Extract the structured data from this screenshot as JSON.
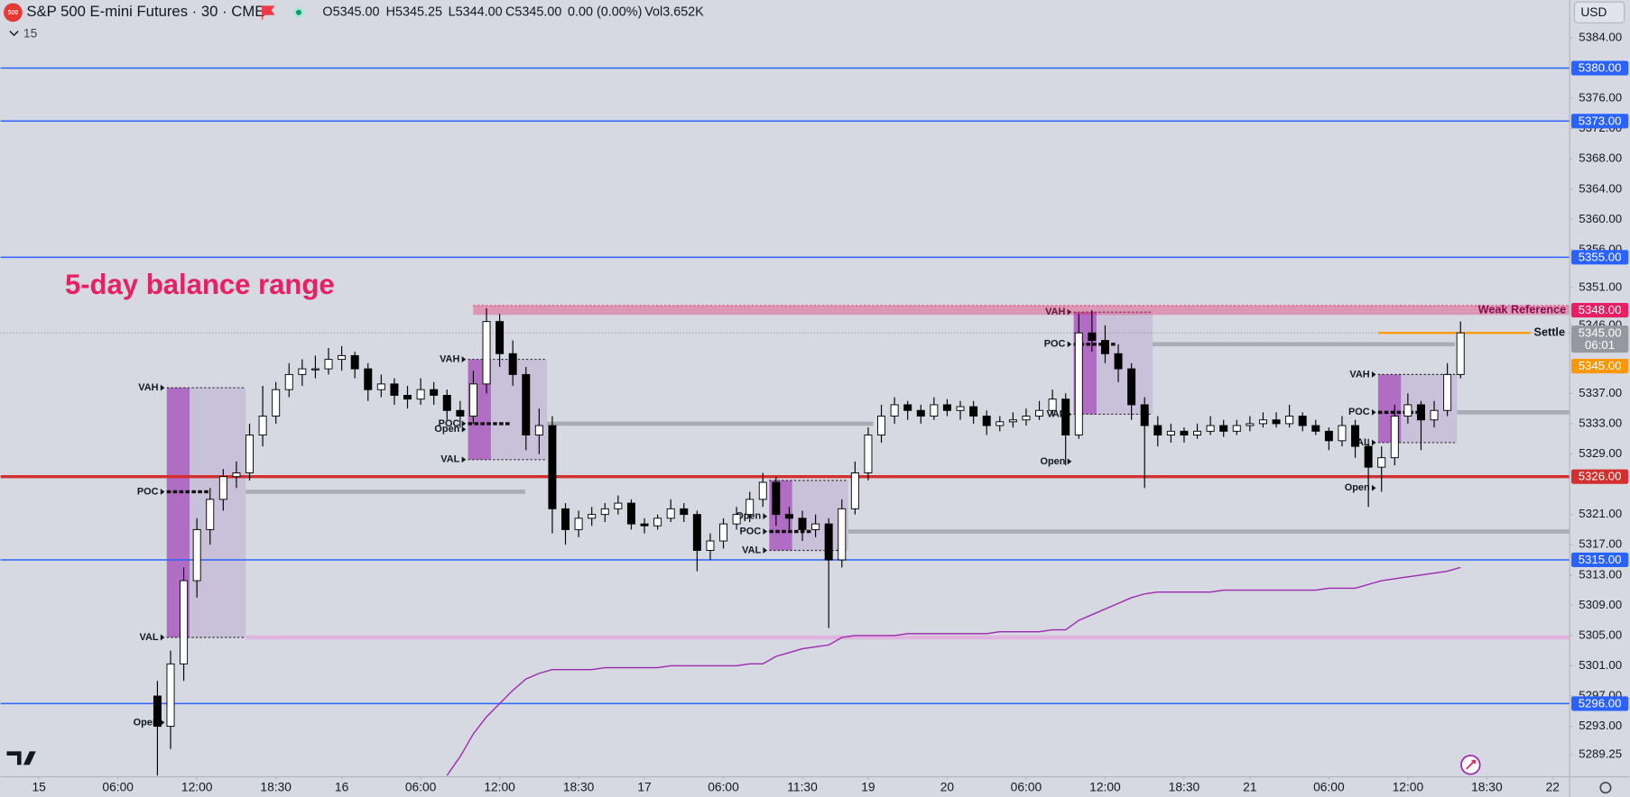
{
  "header": {
    "logo": "500",
    "title": "S&P 500 E-mini Futures · 30 · CME",
    "ohlc": [
      "O5345.00",
      "H5345.25",
      "L5344.00",
      "C5345.00",
      "0.00 (0.00%)",
      "Vol3.652K"
    ],
    "indicator": "15",
    "currency": "USD"
  },
  "chart_data": {
    "type": "candlestick",
    "annotation": "5-day balance range",
    "annotation_color": "#e91e63",
    "ylim": [
      5286.4,
      5389
    ],
    "yticks": [
      {
        "value": 5384,
        "label": "5384.00"
      },
      {
        "value": 5376,
        "label": "5376.00"
      },
      {
        "value": 5372,
        "label": "5372.00"
      },
      {
        "value": 5368,
        "label": "5368.00"
      },
      {
        "value": 5364,
        "label": "5364.00"
      },
      {
        "value": 5360,
        "label": "5360.00"
      },
      {
        "value": 5356,
        "label": "5356.00"
      },
      {
        "value": 5351,
        "label": "5351.00"
      },
      {
        "value": 5346,
        "label": "5346.00"
      },
      {
        "value": 5337,
        "label": "5337.00"
      },
      {
        "value": 5333,
        "label": "5333.00"
      },
      {
        "value": 5329,
        "label": "5329.00"
      },
      {
        "value": 5321,
        "label": "5321.00"
      },
      {
        "value": 5317,
        "label": "5317.00"
      },
      {
        "value": 5313,
        "label": "5313.00"
      },
      {
        "value": 5309,
        "label": "5309.00"
      },
      {
        "value": 5305,
        "label": "5305.00"
      },
      {
        "value": 5301,
        "label": "5301.00"
      },
      {
        "value": 5297,
        "label": "5297.00"
      },
      {
        "value": 5293,
        "label": "5293.00"
      },
      {
        "value": 5289.25,
        "label": "5289.25"
      }
    ],
    "grid": false,
    "categories": [
      "15",
      null,
      null,
      null,
      null,
      null,
      "06:00",
      null,
      null,
      null,
      null,
      null,
      "12:00",
      null,
      null,
      null,
      null,
      null,
      "18:30",
      null,
      null,
      null,
      null,
      "16",
      null,
      null,
      null,
      null,
      null,
      "06:00",
      null,
      null,
      null,
      null,
      null,
      "12:00",
      null,
      null,
      null,
      null,
      null,
      "18:30",
      null,
      null,
      null,
      null,
      "17",
      null,
      null,
      null,
      null,
      null,
      "06:00",
      null,
      null,
      null,
      null,
      null,
      "11:30",
      null,
      null,
      null,
      null,
      "19",
      null,
      null,
      null,
      null,
      null,
      "20",
      null,
      null,
      null,
      null,
      null,
      "06:00",
      null,
      null,
      null,
      null,
      null,
      "12:00",
      null,
      null,
      null,
      null,
      null,
      "18:30",
      null,
      null,
      null,
      null,
      "21",
      null,
      null,
      null,
      null,
      null,
      "06:00",
      null,
      null,
      null,
      null,
      null,
      "12:00",
      null,
      null,
      null,
      null,
      null,
      "18:30",
      null,
      null,
      null,
      null,
      "22"
    ],
    "up_color": "#ffffff",
    "down_color": "#000000",
    "outline_color": "#000000",
    "open": [
      null,
      null,
      null,
      null,
      null,
      null,
      null,
      null,
      null,
      5297,
      5293,
      5301.25,
      5312.25,
      5319,
      5323,
      5326,
      5326.5,
      5331.5,
      5334,
      5337.5,
      5339.5,
      5340.25,
      5340.25,
      5341.5,
      5342,
      5340.25,
      5337.5,
      5338.25,
      5336.75,
      5336.25,
      5337.5,
      5336.75,
      5334.75,
      5334,
      5338.25,
      5346.5,
      5342.25,
      5339.5,
      5331.5,
      5332.75,
      5321.75,
      5319,
      5320.5,
      5321,
      5321.75,
      5322.5,
      5319.75,
      5319.5,
      5320.5,
      5321.75,
      5321,
      5316.25,
      5317.5,
      5319.75,
      5321,
      5323,
      5325.25,
      5321,
      5320.5,
      5319,
      5319.75,
      5315,
      5321.75,
      5326.5,
      5331.5,
      5334,
      5335.5,
      5334.75,
      5334,
      5335.5,
      5334.75,
      5335.25,
      5334,
      5332.75,
      5333.25,
      5333.5,
      5334,
      5334.75,
      5336.25,
      5331.5,
      5345,
      5344,
      5342.25,
      5340.25,
      5335.5,
      5332.75,
      5331.5,
      5332,
      5331.5,
      5332,
      5332.75,
      5332,
      5332.75,
      5333,
      5333.5,
      5333,
      5334,
      5332.75,
      5332,
      5330.75,
      5332.75,
      5330,
      5327.25,
      5328.5,
      5334,
      5335.5,
      5333.5,
      5334.75,
      5339.5,
      null,
      null,
      null,
      null,
      null,
      null,
      null
    ],
    "high": [
      null,
      null,
      null,
      null,
      null,
      null,
      null,
      null,
      null,
      5299,
      5303,
      5314,
      5320.5,
      5324.5,
      5327,
      5328,
      5333,
      5338,
      5338.5,
      5341,
      5341.5,
      5342,
      5343,
      5343.25,
      5342.5,
      5341,
      5339.5,
      5339,
      5338,
      5339,
      5338.5,
      5337.5,
      5336,
      5340,
      5348.25,
      5347.5,
      5344,
      5340.5,
      5335,
      5334,
      5322.5,
      5321.5,
      5322,
      5322.5,
      5323.5,
      5323,
      5320.5,
      5321,
      5323,
      5322.5,
      5321.5,
      5318.5,
      5320.5,
      5322,
      5324,
      5326.5,
      5326,
      5322,
      5321.5,
      5321,
      5320.5,
      5323,
      5328,
      5332.5,
      5335.5,
      5336.5,
      5336,
      5335.5,
      5336.5,
      5336.25,
      5336,
      5336,
      5334.75,
      5334,
      5334.5,
      5335,
      5336,
      5337.5,
      5337,
      5347.5,
      5348,
      5346,
      5343.5,
      5341,
      5336.5,
      5334,
      5333,
      5332.5,
      5333,
      5334,
      5333.5,
      5333.5,
      5334,
      5334.5,
      5334.5,
      5335.5,
      5334.5,
      5333.5,
      5332.5,
      5334,
      5333.5,
      5331,
      5330,
      5335.5,
      5337,
      5336,
      5336,
      5341,
      5346.5,
      null,
      null,
      null,
      null,
      null,
      null,
      null
    ],
    "low": [
      null,
      null,
      null,
      null,
      null,
      null,
      null,
      null,
      null,
      5286.5,
      5290,
      5299,
      5310,
      5317,
      5321.5,
      5324.5,
      5325.5,
      5330,
      5333,
      5336.5,
      5338,
      5339,
      5339.5,
      5340,
      5339,
      5336,
      5336.5,
      5335.5,
      5335,
      5335.5,
      5335.5,
      5333.5,
      5332.5,
      5333,
      5337,
      5340.5,
      5338,
      5329.5,
      5329,
      5318.5,
      5317,
      5318,
      5319.5,
      5320,
      5321,
      5319,
      5318.5,
      5319,
      5320,
      5320,
      5313.5,
      5315,
      5316.5,
      5319,
      5320,
      5322,
      5319.5,
      5319,
      5317.5,
      5318,
      5306,
      5314,
      5321,
      5325.5,
      5330.5,
      5333,
      5333.5,
      5333,
      5333.5,
      5334,
      5333.5,
      5333,
      5331.5,
      5332,
      5332.5,
      5332.75,
      5333.5,
      5334,
      5327.5,
      5331,
      5342.5,
      5341,
      5338.5,
      5333.5,
      5324.5,
      5330,
      5330.5,
      5330.5,
      5331,
      5331.5,
      5331.25,
      5331.5,
      5332,
      5332.5,
      5332.5,
      5332.5,
      5332,
      5331.5,
      5329.5,
      5330,
      5328.5,
      5322,
      5324,
      5327.5,
      5333,
      5329.5,
      5332.5,
      5334,
      5339,
      null,
      null,
      null,
      null,
      null,
      null,
      null
    ],
    "close": [
      null,
      null,
      null,
      null,
      null,
      null,
      null,
      null,
      null,
      5293,
      5301.25,
      5312.25,
      5319,
      5323,
      5326,
      5326.5,
      5331.5,
      5334,
      5337.5,
      5339.5,
      5340.25,
      5340.25,
      5341.5,
      5342,
      5340.25,
      5337.5,
      5338.25,
      5336.75,
      5336.25,
      5337.5,
      5336.75,
      5334.75,
      5334,
      5338.25,
      5346.5,
      5342.25,
      5339.5,
      5331.5,
      5332.75,
      5321.75,
      5319,
      5320.5,
      5321,
      5321.75,
      5322.5,
      5319.75,
      5319.5,
      5320.5,
      5321.75,
      5321,
      5316.25,
      5317.5,
      5319.75,
      5321,
      5323,
      5325.25,
      5321,
      5320.5,
      5319,
      5319.75,
      5315,
      5321.75,
      5326.5,
      5331.5,
      5334,
      5335.5,
      5334.75,
      5334,
      5335.5,
      5334.75,
      5335.25,
      5334,
      5332.75,
      5333.25,
      5333.5,
      5334,
      5334.75,
      5336.25,
      5331.5,
      5345,
      5344,
      5342.25,
      5340.25,
      5335.5,
      5332.75,
      5331.5,
      5332,
      5331.5,
      5332,
      5332.75,
      5332,
      5332.75,
      5333,
      5333.5,
      5333,
      5334,
      5332.75,
      5332,
      5330.75,
      5332.75,
      5330,
      5327.25,
      5328.5,
      5334,
      5335.5,
      5333.5,
      5334.75,
      5339.5,
      5345,
      null,
      null,
      null,
      null,
      null,
      null,
      null
    ],
    "overlay": {
      "color": "#9c27b0",
      "values": [
        null,
        null,
        null,
        null,
        null,
        null,
        null,
        null,
        null,
        null,
        null,
        null,
        null,
        null,
        null,
        null,
        null,
        null,
        null,
        null,
        null,
        null,
        null,
        null,
        null,
        null,
        null,
        null,
        null,
        null,
        null,
        5286.5,
        5289,
        5292,
        5294.25,
        5296,
        5297.75,
        5299.25,
        5300,
        5300.5,
        5300.5,
        5300.5,
        5300.5,
        5300.75,
        5300.75,
        5300.75,
        5300.75,
        5300.75,
        5301,
        5301,
        5301,
        5301,
        5301,
        5301,
        5301.25,
        5301.25,
        5302.25,
        5302.75,
        5303.25,
        5303.5,
        5303.75,
        5304.75,
        5305,
        5305,
        5305,
        5305,
        5305.25,
        5305.25,
        5305.25,
        5305.25,
        5305.25,
        5305.25,
        5305.25,
        5305.5,
        5305.5,
        5305.5,
        5305.5,
        5305.75,
        5305.75,
        5307,
        5307.75,
        5308.5,
        5309.25,
        5310,
        5310.5,
        5310.75,
        5310.75,
        5310.75,
        5310.75,
        5310.75,
        5311,
        5311,
        5311,
        5311,
        5311,
        5311,
        5311,
        5311,
        5311.25,
        5311.25,
        5311.25,
        5311.75,
        5312.25,
        5312.5,
        5312.75,
        5313,
        5313.25,
        5313.5,
        5314,
        null,
        null,
        null,
        null,
        null,
        null,
        null
      ]
    },
    "profiles": [
      {
        "vah": 5337.75,
        "poc": 5324,
        "val": 5304.75,
        "markers": [
          {
            "label": "VAH",
            "value": 5337.75
          },
          {
            "label": "POC",
            "value": 5324
          },
          {
            "label": "VAL",
            "value": 5304.75
          },
          {
            "label": "Open",
            "value": 5293.5
          }
        ]
      },
      {
        "vah": 5341.5,
        "poc": 5333,
        "val": 5328.25,
        "markers": [
          {
            "label": "VAH",
            "value": 5341.5
          },
          {
            "label": "POC",
            "value": 5333
          },
          {
            "label": "Open",
            "value": 5332.25
          },
          {
            "label": "VAL",
            "value": 5328.25
          }
        ]
      },
      {
        "vah": 5325.5,
        "poc": 5318.75,
        "val": 5316.25,
        "markers": [
          {
            "label": "Open",
            "value": 5320.75
          },
          {
            "label": "POC",
            "value": 5318.75
          },
          {
            "label": "VAL",
            "value": 5316.25
          }
        ]
      },
      {
        "vah": 5347.75,
        "poc": 5343.5,
        "val": 5334.25,
        "markers": [
          {
            "label": "VAH",
            "value": 5347.75
          },
          {
            "label": "POC",
            "value": 5343.5
          },
          {
            "label": "VAL",
            "value": 5334.25
          },
          {
            "label": "Open",
            "value": 5328
          }
        ]
      },
      {
        "vah": 5339.5,
        "poc": 5334.5,
        "val": 5330.5,
        "markers": [
          {
            "label": "VAH",
            "value": 5339.5
          },
          {
            "label": "POC",
            "value": 5334.5
          },
          {
            "label": "VAL",
            "value": 5330.5
          },
          {
            "label": "Open",
            "value": 5324.5
          }
        ]
      }
    ],
    "current": {
      "value": 5345,
      "label": "5345.00",
      "countdown": "06:01",
      "color": "#9598a1"
    },
    "levels": [
      {
        "value": 5380,
        "label": "5380.00",
        "color": "#2962ff",
        "style": "line"
      },
      {
        "value": 5373,
        "label": "5373.00",
        "color": "#2962ff",
        "style": "line"
      },
      {
        "value": 5355,
        "label": "5355.00",
        "color": "#2962ff",
        "style": "line"
      },
      {
        "value": 5348,
        "label": "5348.00",
        "color": "#e91e63",
        "style": "band",
        "text": "Weak Reference"
      },
      {
        "value": 5345,
        "label": "5345.00",
        "color": "#ff9800",
        "style": "short",
        "text": "Settle"
      },
      {
        "value": 5326,
        "label": "5326.00",
        "color": "#d32f2f",
        "style": "thick"
      },
      {
        "value": 5315,
        "label": "5315.00",
        "color": "#2962ff",
        "style": "line"
      },
      {
        "value": 5296,
        "label": "5296.00",
        "color": "#2962ff",
        "style": "line"
      }
    ]
  }
}
